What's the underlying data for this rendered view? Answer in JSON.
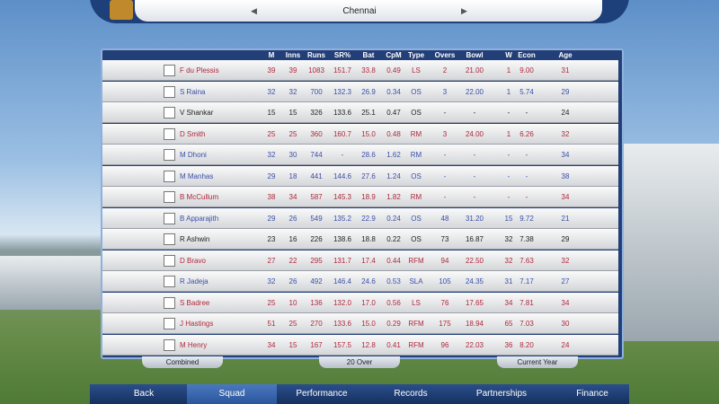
{
  "header": {
    "team": "Chennai"
  },
  "table": {
    "columns": [
      "M",
      "Inns",
      "Runs",
      "SR%",
      "Bat",
      "CpM",
      "Type",
      "Overs",
      "Bowl",
      "W",
      "Econ",
      "Age"
    ],
    "rows": [
      {
        "name": "F du Plessis",
        "color": "#b0283c",
        "stats": [
          "39",
          "39",
          "1083",
          "151.7",
          "33.8",
          "0.49",
          "LS",
          "2",
          "21.00",
          "1",
          "9.00",
          "31"
        ]
      },
      {
        "name": "S Raina",
        "color": "#3a4fa8",
        "stats": [
          "32",
          "32",
          "700",
          "132.3",
          "26.9",
          "0.34",
          "OS",
          "3",
          "22.00",
          "1",
          "5.74",
          "29"
        ]
      },
      {
        "name": "V Shankar",
        "color": "#222222",
        "stats": [
          "15",
          "15",
          "326",
          "133.6",
          "25.1",
          "0.47",
          "OS",
          "-",
          "-",
          "-",
          "-",
          "24"
        ]
      },
      {
        "name": "D Smith",
        "color": "#b0283c",
        "stats": [
          "25",
          "25",
          "360",
          "160.7",
          "15.0",
          "0.48",
          "RM",
          "3",
          "24.00",
          "1",
          "6.26",
          "32"
        ]
      },
      {
        "name": "M Dhoni",
        "color": "#3a4fa8",
        "stats": [
          "32",
          "30",
          "744",
          "-",
          "28.6",
          "1.62",
          "RM",
          "-",
          "-",
          "-",
          "-",
          "34"
        ]
      },
      {
        "name": "M Manhas",
        "color": "#3a4fa8",
        "stats": [
          "29",
          "18",
          "441",
          "144.6",
          "27.6",
          "1.24",
          "OS",
          "-",
          "-",
          "-",
          "-",
          "38"
        ]
      },
      {
        "name": "B McCullum",
        "color": "#b0283c",
        "stats": [
          "38",
          "34",
          "587",
          "145.3",
          "18.9",
          "1.82",
          "RM",
          "-",
          "-",
          "-",
          "-",
          "34"
        ]
      },
      {
        "name": "B Apparajith",
        "color": "#3a4fa8",
        "stats": [
          "29",
          "26",
          "549",
          "135.2",
          "22.9",
          "0.24",
          "OS",
          "48",
          "31.20",
          "15",
          "9.72",
          "21"
        ]
      },
      {
        "name": "R Ashwin",
        "color": "#222222",
        "stats": [
          "23",
          "16",
          "226",
          "138.6",
          "18.8",
          "0.22",
          "OS",
          "73",
          "16.87",
          "32",
          "7.38",
          "29"
        ]
      },
      {
        "name": "D Bravo",
        "color": "#b0283c",
        "stats": [
          "27",
          "22",
          "295",
          "131.7",
          "17.4",
          "0.44",
          "RFM",
          "94",
          "22.50",
          "32",
          "7.63",
          "32"
        ]
      },
      {
        "name": "R Jadeja",
        "color": "#3a4fa8",
        "stats": [
          "32",
          "26",
          "492",
          "146.4",
          "24.6",
          "0.53",
          "SLA",
          "105",
          "24.35",
          "31",
          "7.17",
          "27"
        ]
      },
      {
        "name": "S Badree",
        "color": "#b0283c",
        "stats": [
          "25",
          "10",
          "136",
          "132.0",
          "17.0",
          "0.56",
          "LS",
          "76",
          "17.65",
          "34",
          "7.81",
          "34"
        ]
      },
      {
        "name": "J Hastings",
        "color": "#b0283c",
        "stats": [
          "51",
          "25",
          "270",
          "133.6",
          "15.0",
          "0.29",
          "RFM",
          "175",
          "18.94",
          "65",
          "7.03",
          "30"
        ]
      },
      {
        "name": "M Henry",
        "color": "#b0283c",
        "stats": [
          "34",
          "15",
          "167",
          "157.5",
          "12.8",
          "0.41",
          "RFM",
          "96",
          "22.03",
          "36",
          "8.20",
          "24"
        ]
      }
    ]
  },
  "filters": [
    "Combined",
    "20 Over",
    "Current Year"
  ],
  "nav": [
    "Back",
    "Squad",
    "Performance",
    "Records",
    "Partnerships",
    "Finance"
  ]
}
